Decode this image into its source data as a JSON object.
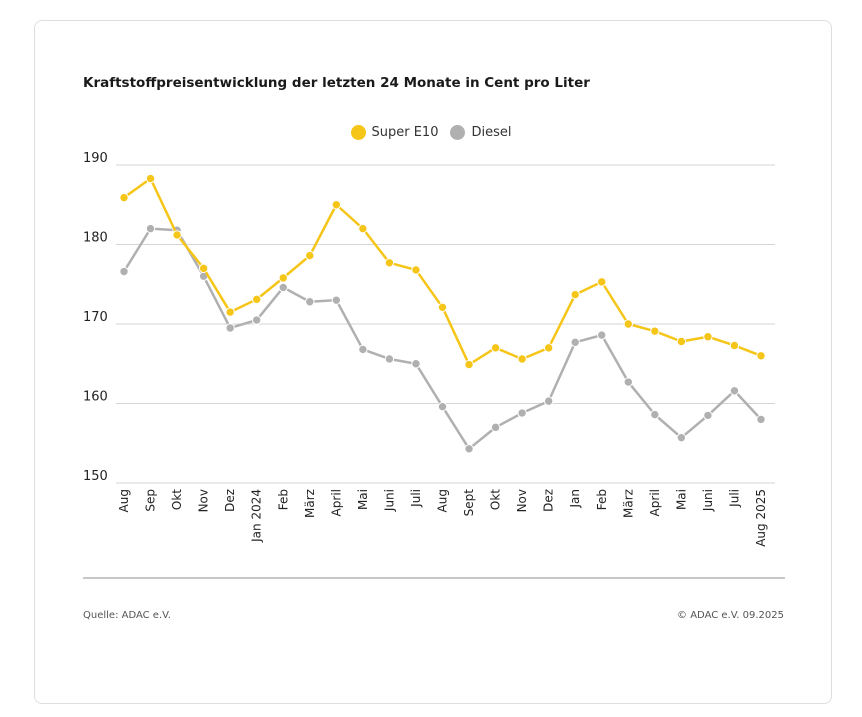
{
  "chart_data": {
    "type": "line",
    "title": "Kraftstoffpreisentwicklung der letzten 24 Monate in Cent pro Liter",
    "categories": [
      "Aug",
      "Sep",
      "Okt",
      "Nov",
      "Dez",
      "Jan 2024",
      "Feb",
      "März",
      "April",
      "Mai",
      "Juni",
      "Juli",
      "Aug",
      "Sept",
      "Okt",
      "Nov",
      "Dez",
      "Jan",
      "Feb",
      "März",
      "April",
      "Mai",
      "Juni",
      "Juli",
      "Aug 2025"
    ],
    "series": [
      {
        "name": "Super E10",
        "color": "#f5c518",
        "values": [
          185.9,
          188.3,
          181.2,
          177.0,
          171.5,
          173.1,
          175.8,
          178.6,
          185.0,
          182.0,
          177.7,
          176.8,
          172.1,
          164.9,
          167.0,
          165.6,
          167.0,
          173.7,
          175.3,
          170.0,
          169.1,
          167.8,
          168.4,
          167.3,
          166.0
        ]
      },
      {
        "name": "Diesel",
        "color": "#b0b0b0",
        "values": [
          176.6,
          182.0,
          181.8,
          176.0,
          169.5,
          170.5,
          174.6,
          172.8,
          173.0,
          166.8,
          165.6,
          165.0,
          159.6,
          154.3,
          157.0,
          158.8,
          160.3,
          167.7,
          168.6,
          162.7,
          158.6,
          155.7,
          158.5,
          161.6,
          158.0
        ]
      }
    ],
    "yticks": [
      190,
      180,
      170,
      160,
      150
    ],
    "ylim": [
      150,
      190
    ],
    "grid": true,
    "legend_position": "top-center"
  },
  "footer": {
    "source": "Quelle: ADAC e.V.",
    "copyright": "© ADAC e.V. 09.2025"
  }
}
